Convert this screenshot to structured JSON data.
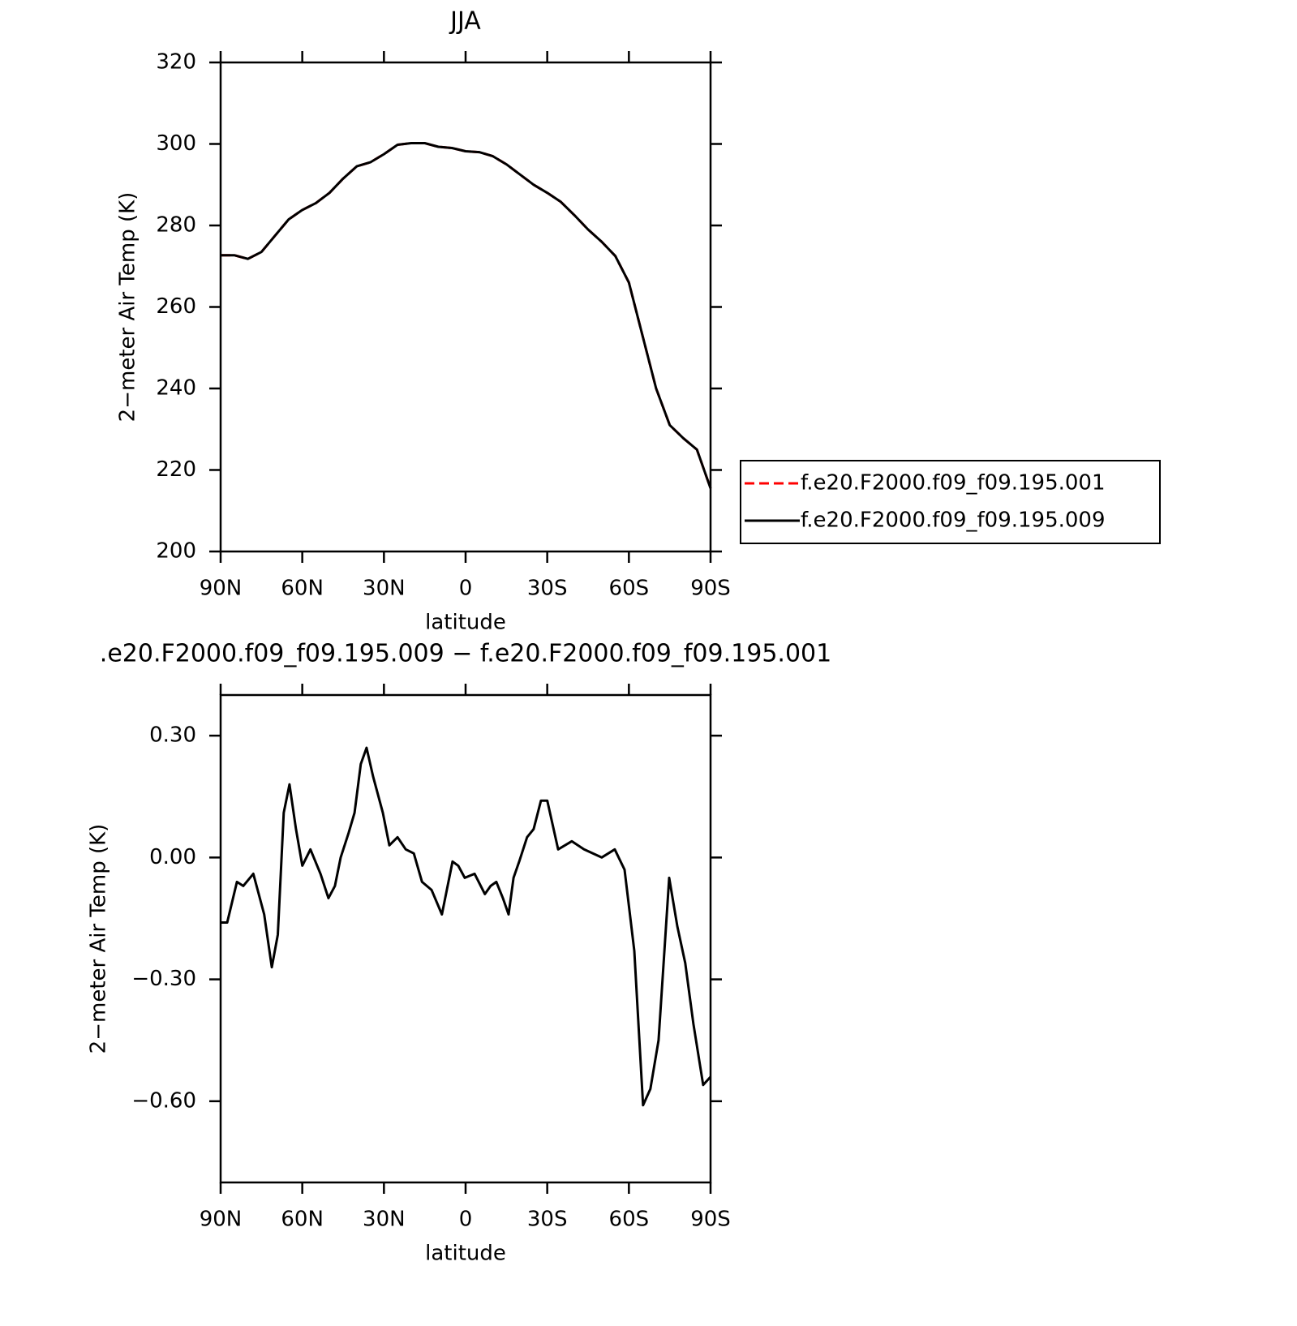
{
  "chart_data": [
    {
      "type": "line",
      "title": "JJA",
      "xlabel": "latitude",
      "ylabel": "2−meter Air Temp (K)",
      "x": [
        90,
        85,
        80,
        75,
        70,
        65,
        60,
        55,
        50,
        45,
        40,
        35,
        30,
        25,
        20,
        15,
        10,
        5,
        0,
        -5,
        -10,
        -15,
        -20,
        -25,
        -30,
        -35,
        -40,
        -45,
        -50,
        -55,
        -60,
        -65,
        -70,
        -75,
        -80,
        -85,
        -90
      ],
      "series": [
        {
          "name": "f.e20.F2000.f09_f09.195.001",
          "color": "#ff0000",
          "line_style": "dashed",
          "values": [
            272.7,
            272.7,
            271.8,
            273.5,
            277.5,
            281.5,
            283.8,
            285.5,
            288,
            291.5,
            294.5,
            295.5,
            297.5,
            299.8,
            300.2,
            300.2,
            299.3,
            299,
            298.2,
            298,
            297,
            295,
            292.5,
            290,
            288,
            285.8,
            282.5,
            279,
            276,
            272.5,
            266,
            253,
            240,
            231,
            227.8,
            225,
            215.5
          ]
        },
        {
          "name": "f.e20.F2000.f09_f09.195.009",
          "color": "#000000",
          "line_style": "solid",
          "values": [
            272.7,
            272.7,
            271.8,
            273.5,
            277.5,
            281.5,
            283.8,
            285.5,
            288,
            291.5,
            294.5,
            295.5,
            297.5,
            299.8,
            300.2,
            300.2,
            299.3,
            299,
            298.2,
            298,
            297,
            295,
            292.5,
            290,
            288,
            285.8,
            282.5,
            279,
            276,
            272.5,
            266,
            253,
            240,
            231,
            227.8,
            225,
            215.5
          ]
        }
      ],
      "xlim": [
        90,
        -90
      ],
      "xticks": [
        {
          "value": 90,
          "label": "90N"
        },
        {
          "value": 60,
          "label": "60N"
        },
        {
          "value": 30,
          "label": "30N"
        },
        0,
        {
          "value": -30,
          "label": "30S"
        },
        {
          "value": -60,
          "label": "60S"
        },
        {
          "value": -90,
          "label": "90S"
        }
      ],
      "ylim": [
        200,
        320
      ],
      "yticks": [
        200,
        220,
        240,
        260,
        280,
        300,
        320
      ],
      "legend": "right"
    },
    {
      "type": "line",
      "title": ".e20.F2000.f09_f09.195.009 − f.e20.F2000.f09_f09.195.001",
      "xlabel": "latitude",
      "ylabel": "2−meter Air Temp (K)",
      "x": [
        90,
        87.6,
        84,
        81.7,
        78,
        74,
        71.2,
        69,
        66.8,
        64.7,
        62.3,
        60,
        57,
        53.3,
        50.4,
        48,
        45.9,
        43,
        40.8,
        38.5,
        36.4,
        34,
        30.4,
        28,
        25,
        22,
        19,
        16,
        12.5,
        8.7,
        4.8,
        2.7,
        0.3,
        -3.3,
        -7.1,
        -9.2,
        -11.3,
        -13.7,
        -15.8,
        -17.6,
        -19.7,
        -22.6,
        -25,
        -27.7,
        -30,
        -34,
        -39,
        -43.5,
        -50,
        -54.8,
        -58.4,
        -62,
        -65.2,
        -67.9,
        -70.9,
        -74.8,
        -77.8,
        -80.7,
        -83.7,
        -87.3,
        -90
      ],
      "series": [
        {
          "color": "#000000",
          "line_style": "solid",
          "values": [
            -0.16,
            -0.16,
            -0.06,
            -0.07,
            -0.04,
            -0.14,
            -0.27,
            -0.19,
            0.11,
            0.18,
            0.07,
            -0.02,
            0.02,
            -0.04,
            -0.1,
            -0.07,
            0.0,
            0.06,
            0.11,
            0.23,
            0.27,
            0.2,
            0.11,
            0.03,
            0.05,
            0.02,
            0.01,
            -0.06,
            -0.08,
            -0.14,
            -0.01,
            -0.02,
            -0.05,
            -0.04,
            -0.09,
            -0.07,
            -0.06,
            -0.1,
            -0.14,
            -0.05,
            -0.01,
            0.05,
            0.07,
            0.14,
            0.14,
            0.02,
            0.04,
            0.02,
            0.0,
            0.02,
            -0.03,
            -0.23,
            -0.61,
            -0.57,
            -0.45,
            -0.05,
            -0.17,
            -0.26,
            -0.41,
            -0.56,
            -0.54
          ]
        }
      ],
      "xlim": [
        90,
        -90
      ],
      "xticks": [
        {
          "value": 90,
          "label": "90N"
        },
        {
          "value": 60,
          "label": "60N"
        },
        {
          "value": 30,
          "label": "30N"
        },
        0,
        {
          "value": -30,
          "label": "30S"
        },
        {
          "value": -60,
          "label": "60S"
        },
        {
          "value": -90,
          "label": "90S"
        }
      ],
      "ylim": [
        -0.8,
        0.4
      ],
      "yticks": [
        {
          "value": -0.6,
          "label": "−0.60"
        },
        {
          "value": -0.3,
          "label": "−0.30"
        },
        {
          "value": 0,
          "label": "0.00"
        },
        {
          "value": 0.3,
          "label": "0.30"
        }
      ]
    }
  ]
}
